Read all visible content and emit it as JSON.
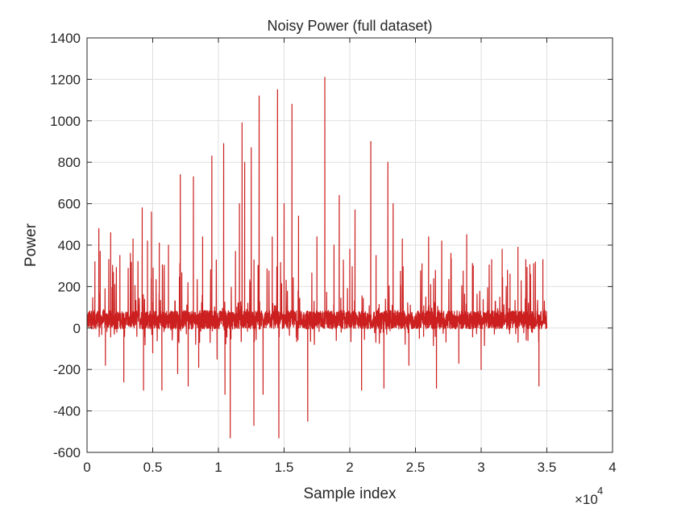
{
  "chart_data": {
    "type": "line",
    "title": "Noisy Power (full dataset)",
    "xlabel": "Sample index",
    "ylabel": "Power",
    "xlim": [
      0,
      40000
    ],
    "ylim": [
      -600,
      1400
    ],
    "x_ticks": [
      0,
      5000,
      10000,
      15000,
      20000,
      25000,
      30000,
      35000,
      40000
    ],
    "x_tick_labels": [
      "0",
      "0.5",
      "1",
      "1.5",
      "2",
      "2.5",
      "3",
      "3.5",
      "4"
    ],
    "y_ticks": [
      -600,
      -400,
      -200,
      0,
      200,
      400,
      600,
      800,
      1000,
      1200,
      1400
    ],
    "y_tick_labels": [
      "-600",
      "-400",
      "-200",
      "0",
      "200",
      "400",
      "600",
      "800",
      "1000",
      "1200",
      "1400"
    ],
    "x_exponent_label": "×10",
    "x_exponent_power": "4",
    "grid": true,
    "line_color": "#cc1f1f",
    "series": [
      {
        "x_range": [
          0,
          35000
        ],
        "baseline": 40,
        "description_values": [
          [
            0,
            -190
          ],
          [
            300,
            60
          ],
          [
            600,
            320
          ],
          [
            900,
            480
          ],
          [
            1000,
            370
          ],
          [
            1400,
            -180
          ],
          [
            1800,
            460
          ],
          [
            2500,
            350
          ],
          [
            2800,
            -260
          ],
          [
            3300,
            360
          ],
          [
            3500,
            430
          ],
          [
            4200,
            580
          ],
          [
            4300,
            -300
          ],
          [
            4600,
            420
          ],
          [
            4900,
            560
          ],
          [
            5000,
            -120
          ],
          [
            5500,
            410
          ],
          [
            5700,
            -300
          ],
          [
            6200,
            400
          ],
          [
            6900,
            -220
          ],
          [
            7100,
            740
          ],
          [
            7700,
            -280
          ],
          [
            8100,
            730
          ],
          [
            8500,
            -190
          ],
          [
            8800,
            440
          ],
          [
            9500,
            830
          ],
          [
            9900,
            -150
          ],
          [
            10400,
            890
          ],
          [
            10500,
            -320
          ],
          [
            10900,
            -530
          ],
          [
            11300,
            370
          ],
          [
            11600,
            600
          ],
          [
            11800,
            990
          ],
          [
            12000,
            800
          ],
          [
            12500,
            870
          ],
          [
            12700,
            -470
          ],
          [
            13100,
            1120
          ],
          [
            13400,
            -320
          ],
          [
            14100,
            440
          ],
          [
            14500,
            1150
          ],
          [
            14600,
            -530
          ],
          [
            15000,
            600
          ],
          [
            15600,
            1080
          ],
          [
            16100,
            540
          ],
          [
            16800,
            -450
          ],
          [
            17500,
            440
          ],
          [
            18100,
            1210
          ],
          [
            18800,
            400
          ],
          [
            19200,
            640
          ],
          [
            20000,
            380
          ],
          [
            20400,
            570
          ],
          [
            20900,
            -300
          ],
          [
            21600,
            900
          ],
          [
            22000,
            350
          ],
          [
            22600,
            -290
          ],
          [
            22900,
            800
          ],
          [
            23300,
            600
          ],
          [
            24000,
            430
          ],
          [
            24500,
            -180
          ],
          [
            25500,
            310
          ],
          [
            26000,
            440
          ],
          [
            26600,
            -290
          ],
          [
            27000,
            420
          ],
          [
            27700,
            360
          ],
          [
            28300,
            -170
          ],
          [
            28900,
            450
          ],
          [
            29400,
            300
          ],
          [
            30000,
            -200
          ],
          [
            30800,
            330
          ],
          [
            31600,
            380
          ],
          [
            32200,
            260
          ],
          [
            32800,
            390
          ],
          [
            33400,
            330
          ],
          [
            34000,
            310
          ],
          [
            34400,
            -280
          ],
          [
            34700,
            330
          ],
          [
            35000,
            0
          ]
        ]
      }
    ]
  }
}
